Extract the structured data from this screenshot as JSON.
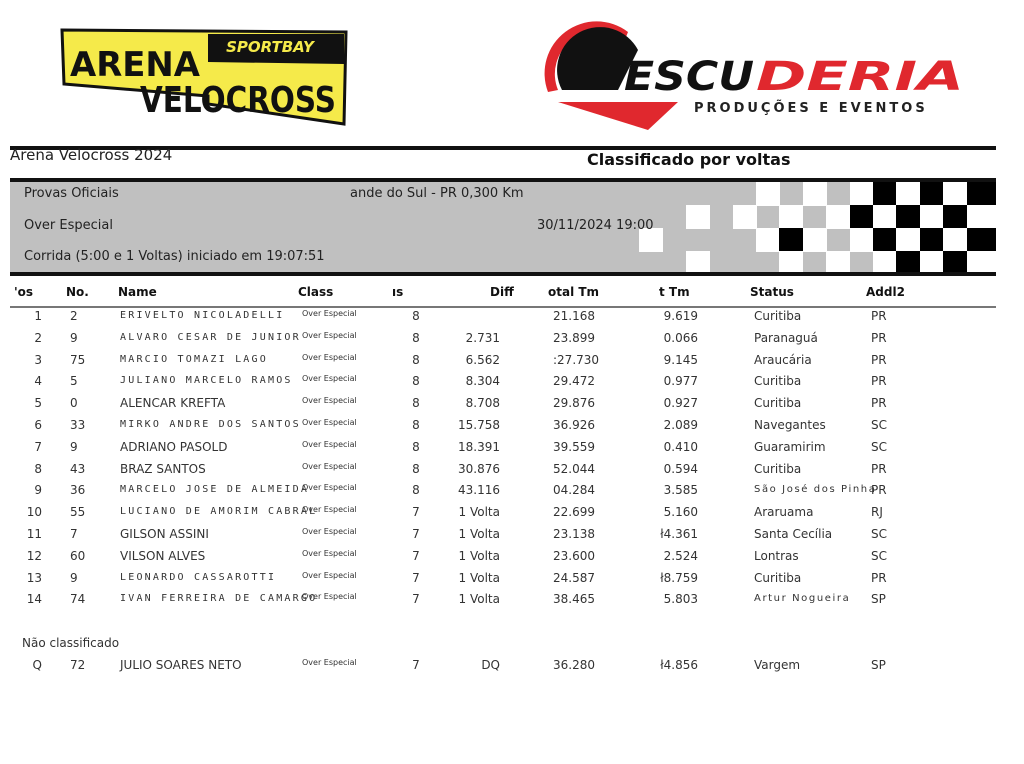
{
  "logos": {
    "left": {
      "brand": "ARENA VELOCROSS",
      "tagline": "SPORTBAY",
      "colors": {
        "yellow": "#f5ea4a",
        "black": "#111111"
      }
    },
    "right": {
      "brand": "ESCUDERIA",
      "tagline": "PRODUÇÕES E EVENTOS",
      "colors": {
        "red": "#e0282e",
        "black": "#111111"
      }
    }
  },
  "header": {
    "event_title": "Arena Velocross 2024",
    "classification_title": "Classificado por voltas"
  },
  "info": {
    "line1": "Provas Oficiais",
    "location": "ande do Sul - PR 0,300 Km",
    "category": "Over Especial",
    "datetime": "30/11/2024 19:00",
    "race": "Corrida (5:00 e 1 Voltas) iniciado em 19:07:51"
  },
  "columns": {
    "pos": "'os",
    "no": "No.",
    "name": "Name",
    "class": "Class",
    "laps": "ıs",
    "diff": "Diff",
    "total": "otal Tm",
    "best": "t Tm",
    "status": "Status",
    "addl2": "Addl2"
  },
  "results": [
    {
      "pos": "1",
      "no": "2",
      "name": "ERIVELTO  NICOLADELLI",
      "class": "Over Especial",
      "laps": "8",
      "diff": "",
      "total": "21.168",
      "best": "9.619",
      "status": "Curitiba",
      "addl2": "PR"
    },
    {
      "pos": "2",
      "no": "9",
      "name": "ALVARO CESAR DE JUNIOR",
      "class": "Over Especial",
      "laps": "8",
      "diff": "2.731",
      "total": "23.899",
      "best": "0.066",
      "status": "Paranaguá",
      "addl2": "PR"
    },
    {
      "pos": "3",
      "no": "75",
      "name": "MARCIO TOMAZI  LAGO",
      "class": "Over Especial",
      "laps": "8",
      "diff": "6.562",
      "total": ":27.730",
      "best": "9.145",
      "status": "Araucária",
      "addl2": "PR"
    },
    {
      "pos": "4",
      "no": "5",
      "name": "JULIANO MARCELO RAMOS",
      "class": "Over Especial",
      "laps": "8",
      "diff": "8.304",
      "total": "29.472",
      "best": "0.977",
      "status": "Curitiba",
      "addl2": "PR"
    },
    {
      "pos": "5",
      "no": "0",
      "name": "ALENCAR KREFTA",
      "class": "Over Especial",
      "laps": "8",
      "diff": "8.708",
      "total": "29.876",
      "best": "0.927",
      "status": "Curitiba",
      "addl2": "PR"
    },
    {
      "pos": "6",
      "no": "33",
      "name": "MIRKO ANDRE DOS SANTOS",
      "class": "Over Especial",
      "laps": "8",
      "diff": "15.758",
      "total": "36.926",
      "best": "2.089",
      "status": "Navegantes",
      "addl2": "SC"
    },
    {
      "pos": "7",
      "no": "9",
      "name": "ADRIANO PASOLD",
      "class": "Over Especial",
      "laps": "8",
      "diff": "18.391",
      "total": "39.559",
      "best": "0.410",
      "status": "Guaramirim",
      "addl2": "SC"
    },
    {
      "pos": "8",
      "no": "43",
      "name": "BRAZ  SANTOS",
      "class": "Over Especial",
      "laps": "8",
      "diff": "30.876",
      "total": "52.044",
      "best": "0.594",
      "status": "Curitiba",
      "addl2": "PR"
    },
    {
      "pos": "9",
      "no": "36",
      "name": "MARCELO JOSE DE ALMEIDA",
      "class": "Over Especial",
      "laps": "8",
      "diff": "43.116",
      "total": "04.284",
      "best": "3.585",
      "status": "São José dos Pinha",
      "addl2": "PR"
    },
    {
      "pos": "10",
      "no": "55",
      "name": "LUCIANO DE AMORIM CABRAL",
      "class": "Over Especial",
      "laps": "7",
      "diff": "1 Volta",
      "total": "22.699",
      "best": "5.160",
      "status": "Araruama",
      "addl2": "RJ"
    },
    {
      "pos": "11",
      "no": "7",
      "name": "GILSON  ASSINI",
      "class": "Over Especial",
      "laps": "7",
      "diff": "1 Volta",
      "total": "23.138",
      "best": "ł4.361",
      "status": "Santa Cecília",
      "addl2": "SC"
    },
    {
      "pos": "12",
      "no": "60",
      "name": "VILSON ALVES",
      "class": "Over Especial",
      "laps": "7",
      "diff": "1 Volta",
      "total": "23.600",
      "best": "2.524",
      "status": "Lontras",
      "addl2": "SC"
    },
    {
      "pos": "13",
      "no": "9",
      "name": "LEONARDO CASSAROTTI",
      "class": "Over Especial",
      "laps": "7",
      "diff": "1 Volta",
      "total": "24.587",
      "best": "ł8.759",
      "status": "Curitiba",
      "addl2": "PR"
    },
    {
      "pos": "14",
      "no": "74",
      "name": "IVAN FERREIRA DE CAMARGO",
      "class": "Over Especial",
      "laps": "7",
      "diff": "1 Volta",
      "total": "38.465",
      "best": "5.803",
      "status": "Artur Nogueira",
      "addl2": "SP"
    }
  ],
  "not_classified": {
    "label": "Não classificado",
    "rows": [
      {
        "pos": "Q",
        "no": "72",
        "name": "JULIO SOARES NETO",
        "class": "Over Especial",
        "laps": "7",
        "diff": "DQ",
        "total": "36.280",
        "best": "ł4.856",
        "status": "Vargem",
        "addl2": "SP"
      }
    ]
  }
}
